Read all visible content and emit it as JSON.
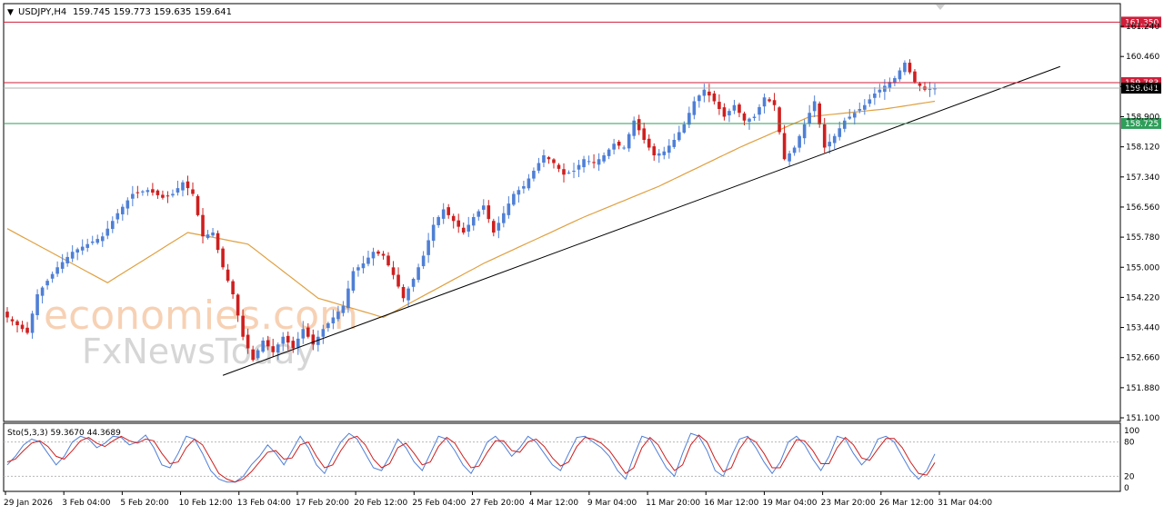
{
  "header": {
    "symbol": "USDJPY,H4",
    "ohlc": "159.745 159.773 159.635 159.641"
  },
  "watermark": {
    "brand_top": "economies.com",
    "brand_bottom": "FxNewsToday"
  },
  "colors": {
    "bull": "#4f7fd6",
    "bear": "#cf1f1f",
    "ma": "#e0a040",
    "trendline": "#000000",
    "resistance": "#cf1f3a",
    "support": "#2f9e5a",
    "stoch_main": "#4f7fd6",
    "stoch_signal": "#cf1f1f"
  },
  "chart_data": [
    {
      "type": "candlestick",
      "timeframe": "H4",
      "ylim": [
        151.1,
        161.5
      ],
      "y_ticks": [
        "161.240",
        "160.460",
        "159.680",
        "158.900",
        "158.120",
        "157.340",
        "156.560",
        "155.780",
        "155.000",
        "154.220",
        "153.440",
        "152.660",
        "151.880",
        "151.100"
      ],
      "x_ticks": [
        "29 Jan 2026",
        "3 Feb 04:00",
        "5 Feb 20:00",
        "10 Feb 12:00",
        "13 Feb 04:00",
        "17 Feb 20:00",
        "20 Feb 12:00",
        "25 Feb 04:00",
        "27 Feb 20:00",
        "4 Mar 12:00",
        "9 Mar 04:00",
        "11 Mar 20:00",
        "16 Mar 12:00",
        "19 Mar 04:00",
        "23 Mar 20:00",
        "26 Mar 12:00",
        "31 Mar 04:00"
      ],
      "close_path": [
        [
          0,
          153.7
        ],
        [
          4,
          153.3
        ],
        [
          6,
          154.3
        ],
        [
          10,
          155.0
        ],
        [
          13,
          155.4
        ],
        [
          16,
          155.6
        ],
        [
          19,
          155.8
        ],
        [
          22,
          156.4
        ],
        [
          25,
          156.9
        ],
        [
          28,
          157.0
        ],
        [
          31,
          156.8
        ],
        [
          33,
          156.9
        ],
        [
          35,
          157.2
        ],
        [
          37,
          156.9
        ],
        [
          39,
          155.8
        ],
        [
          41,
          155.9
        ],
        [
          43,
          155.0
        ],
        [
          45,
          154.3
        ],
        [
          47,
          153.2
        ],
        [
          49,
          152.6
        ],
        [
          51,
          153.1
        ],
        [
          53,
          152.8
        ],
        [
          55,
          153.2
        ],
        [
          57,
          152.9
        ],
        [
          59,
          153.4
        ],
        [
          61,
          153.0
        ],
        [
          63,
          153.4
        ],
        [
          65,
          153.7
        ],
        [
          67,
          154.0
        ],
        [
          69,
          154.9
        ],
        [
          71,
          155.1
        ],
        [
          73,
          155.4
        ],
        [
          75,
          155.3
        ],
        [
          77,
          154.8
        ],
        [
          79,
          154.2
        ],
        [
          81,
          154.7
        ],
        [
          83,
          155.3
        ],
        [
          85,
          156.1
        ],
        [
          87,
          156.5
        ],
        [
          89,
          156.2
        ],
        [
          91,
          155.9
        ],
        [
          93,
          156.3
        ],
        [
          95,
          156.6
        ],
        [
          97,
          155.9
        ],
        [
          99,
          156.4
        ],
        [
          101,
          156.9
        ],
        [
          103,
          157.1
        ],
        [
          105,
          157.5
        ],
        [
          107,
          157.9
        ],
        [
          109,
          157.7
        ],
        [
          111,
          157.4
        ],
        [
          113,
          157.5
        ],
        [
          115,
          157.8
        ],
        [
          117,
          157.7
        ],
        [
          119,
          157.9
        ],
        [
          121,
          158.2
        ],
        [
          123,
          158.1
        ],
        [
          125,
          158.8
        ],
        [
          127,
          158.3
        ],
        [
          129,
          157.9
        ],
        [
          131,
          158.0
        ],
        [
          133,
          158.3
        ],
        [
          135,
          158.7
        ],
        [
          137,
          159.3
        ],
        [
          139,
          159.6
        ],
        [
          141,
          159.3
        ],
        [
          143,
          158.9
        ],
        [
          145,
          159.2
        ],
        [
          147,
          158.8
        ],
        [
          149,
          158.9
        ],
        [
          151,
          159.4
        ],
        [
          153,
          159.2
        ],
        [
          155,
          157.8
        ],
        [
          157,
          158.1
        ],
        [
          159,
          158.7
        ],
        [
          161,
          159.3
        ],
        [
          163,
          158.1
        ],
        [
          165,
          158.4
        ],
        [
          167,
          158.8
        ],
        [
          169,
          159.0
        ],
        [
          171,
          159.2
        ],
        [
          173,
          159.5
        ],
        [
          175,
          159.7
        ],
        [
          177,
          159.9
        ],
        [
          179,
          160.3
        ],
        [
          181,
          159.8
        ],
        [
          183,
          159.6
        ],
        [
          185,
          159.641
        ]
      ],
      "ma": [
        [
          0,
          156.0
        ],
        [
          20,
          154.6
        ],
        [
          36,
          155.9
        ],
        [
          48,
          155.6
        ],
        [
          62,
          154.2
        ],
        [
          75,
          153.7
        ],
        [
          95,
          155.1
        ],
        [
          115,
          156.3
        ],
        [
          130,
          157.1
        ],
        [
          146,
          158.1
        ],
        [
          160,
          158.9
        ],
        [
          175,
          159.1
        ],
        [
          185,
          159.3
        ]
      ],
      "trendline": {
        "from": [
          43,
          152.2
        ],
        "to": [
          210,
          160.2
        ]
      },
      "levels": [
        {
          "value": 161.35,
          "label": "161.350",
          "color": "#cf1f3a"
        },
        {
          "value": 159.783,
          "label": "159.783",
          "color": "#cf1f3a"
        },
        {
          "value": 158.725,
          "label": "158.725",
          "color": "#2f9e5a"
        }
      ],
      "current_price": {
        "value": 159.641,
        "label": "159.641"
      }
    },
    {
      "type": "line",
      "name": "Sto(5,3,3) 59.3670 44.3689",
      "ylim": [
        0,
        100
      ],
      "y_ticks": [
        "100",
        "80",
        "20",
        "0"
      ],
      "levels": [
        80,
        20
      ],
      "series": [
        {
          "name": "main",
          "values": [
            40,
            55,
            75,
            85,
            80,
            60,
            40,
            55,
            80,
            90,
            85,
            70,
            78,
            90,
            88,
            75,
            80,
            92,
            70,
            40,
            35,
            60,
            90,
            85,
            60,
            30,
            15,
            10,
            10,
            20,
            40,
            55,
            75,
            60,
            40,
            65,
            90,
            70,
            40,
            25,
            55,
            80,
            95,
            85,
            60,
            35,
            30,
            55,
            85,
            70,
            45,
            30,
            60,
            90,
            85,
            65,
            40,
            25,
            50,
            80,
            90,
            75,
            55,
            70,
            90,
            80,
            60,
            40,
            30,
            60,
            88,
            90,
            80,
            70,
            55,
            30,
            15,
            55,
            90,
            85,
            60,
            35,
            20,
            60,
            95,
            90,
            65,
            30,
            20,
            55,
            85,
            90,
            70,
            45,
            25,
            45,
            80,
            90,
            75,
            50,
            30,
            55,
            90,
            85,
            60,
            40,
            55,
            85,
            90,
            80,
            55,
            30,
            15,
            30,
            59
          ]
        },
        {
          "name": "signal",
          "values": [
            45,
            50,
            65,
            78,
            82,
            72,
            55,
            50,
            65,
            82,
            88,
            78,
            72,
            82,
            90,
            82,
            78,
            85,
            82,
            60,
            42,
            45,
            70,
            85,
            75,
            50,
            25,
            15,
            10,
            15,
            28,
            45,
            62,
            65,
            50,
            52,
            75,
            80,
            55,
            35,
            40,
            65,
            85,
            90,
            75,
            50,
            35,
            42,
            70,
            78,
            60,
            40,
            45,
            72,
            88,
            78,
            55,
            35,
            38,
            62,
            82,
            82,
            65,
            62,
            80,
            85,
            72,
            52,
            38,
            45,
            72,
            88,
            85,
            78,
            65,
            45,
            25,
            35,
            70,
            88,
            75,
            50,
            30,
            40,
            75,
            92,
            80,
            50,
            28,
            35,
            68,
            88,
            80,
            60,
            35,
            35,
            60,
            84,
            82,
            65,
            42,
            42,
            70,
            88,
            75,
            52,
            48,
            68,
            86,
            86,
            70,
            45,
            25,
            22,
            44
          ]
        }
      ]
    }
  ]
}
